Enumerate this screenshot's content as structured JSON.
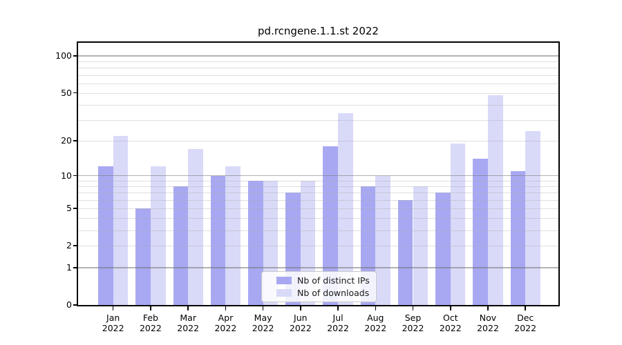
{
  "chart_data": {
    "type": "bar",
    "title": "pd.rcngene.1.1.st 2022",
    "categories": [
      "Jan",
      "Feb",
      "Mar",
      "Apr",
      "May",
      "Jun",
      "Jul",
      "Aug",
      "Sep",
      "Oct",
      "Nov",
      "Dec"
    ],
    "year_label": "2022",
    "series": [
      {
        "name": "Nb of distinct IPs",
        "color": "#a8a8f2",
        "values": [
          12,
          5,
          8,
          10,
          9,
          7,
          18,
          8,
          6,
          7,
          14,
          11
        ]
      },
      {
        "name": "Nb of downloads",
        "color": "#d9d9f8",
        "values": [
          22,
          12,
          17,
          12,
          9,
          9,
          34,
          10,
          8,
          19,
          48,
          24
        ]
      }
    ],
    "xlabel": "",
    "ylabel": "",
    "yscale": "log(1+y)",
    "ylim": [
      0,
      128
    ],
    "yticks": [
      100,
      50,
      20,
      10,
      5,
      2,
      1,
      0
    ],
    "grid": {
      "on": true,
      "major_lines": [
        1,
        10,
        100
      ],
      "minor_lines": [
        2,
        3,
        4,
        5,
        6,
        7,
        8,
        9,
        20,
        30,
        40,
        50,
        60,
        70,
        80,
        90
      ],
      "major_color": "#8f8f8f",
      "minor_color": "#dedede"
    },
    "legend": {
      "position": "lower center",
      "entries": [
        "Nb of distinct IPs",
        "Nb of downloads"
      ]
    },
    "background": "#ffffff"
  }
}
